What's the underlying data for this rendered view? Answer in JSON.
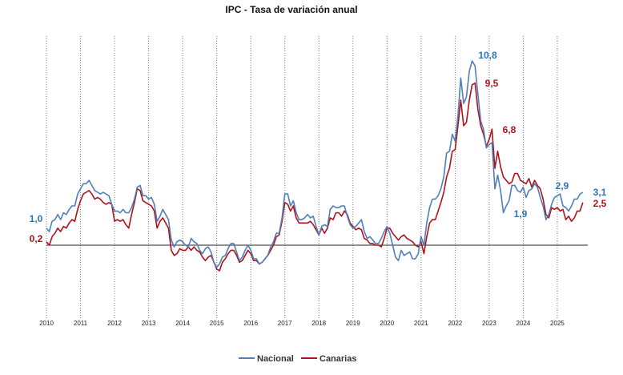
{
  "chart_data": {
    "type": "line",
    "title": "IPC - Tasa de variación anual",
    "xlabel": "",
    "ylabel": "",
    "start": "2010-01",
    "frequency": "monthly",
    "x_ticks": [
      "2010",
      "2011",
      "2012",
      "2013",
      "2014",
      "2015",
      "2016",
      "2017",
      "2018",
      "2019",
      "2020",
      "2021",
      "2022",
      "2023",
      "2024",
      "2025"
    ],
    "ylim": [
      -4.2,
      12.5
    ],
    "grid": "vertical-dotted-yearly",
    "legend": "bottom-center",
    "series": [
      {
        "name": "Nacional",
        "color": "#4f7fb9",
        "values": [
          1.0,
          0.8,
          1.4,
          1.5,
          1.8,
          1.5,
          1.9,
          1.8,
          2.1,
          2.3,
          2.3,
          3.0,
          3.3,
          3.6,
          3.6,
          3.8,
          3.5,
          3.2,
          3.1,
          3.0,
          3.1,
          3.0,
          2.9,
          2.4,
          2.0,
          2.0,
          1.9,
          2.1,
          1.9,
          1.9,
          2.2,
          2.7,
          3.4,
          3.5,
          2.9,
          2.9,
          2.7,
          2.8,
          2.4,
          1.4,
          1.7,
          2.1,
          1.8,
          1.5,
          0.3,
          -0.1,
          0.2,
          0.3,
          0.2,
          0.0,
          -0.1,
          0.4,
          0.2,
          0.1,
          -0.3,
          -0.5,
          -0.2,
          -0.1,
          -0.4,
          -1.0,
          -1.3,
          -1.1,
          -0.7,
          -0.6,
          -0.2,
          0.1,
          0.1,
          -0.4,
          -0.9,
          -0.7,
          -0.3,
          0.0,
          -0.3,
          -0.8,
          -0.8,
          -1.1,
          -1.0,
          -0.8,
          -0.6,
          -0.1,
          0.2,
          0.7,
          0.7,
          1.6,
          3.0,
          3.0,
          2.3,
          2.6,
          1.9,
          1.5,
          1.5,
          1.6,
          1.8,
          1.6,
          1.7,
          1.1,
          0.6,
          1.1,
          1.2,
          1.1,
          2.1,
          2.3,
          2.2,
          2.2,
          2.3,
          2.3,
          1.7,
          1.2,
          1.0,
          1.1,
          1.3,
          1.5,
          0.8,
          0.4,
          0.5,
          0.3,
          0.1,
          0.1,
          0.4,
          0.8,
          1.1,
          0.7,
          0.0,
          -0.7,
          -0.9,
          -0.3,
          -0.6,
          -0.5,
          -0.4,
          -0.8,
          -0.8,
          -0.5,
          0.5,
          0.0,
          1.3,
          2.2,
          2.7,
          2.7,
          2.9,
          3.3,
          4.0,
          5.4,
          5.5,
          6.5,
          6.1,
          7.6,
          9.8,
          8.3,
          8.7,
          10.2,
          10.8,
          10.5,
          8.9,
          7.3,
          6.8,
          5.7,
          5.9,
          6.0,
          3.3,
          4.1,
          3.2,
          1.9,
          2.3,
          2.6,
          3.5,
          3.5,
          3.2,
          3.1,
          3.4,
          2.8,
          3.2,
          3.3,
          3.6,
          3.4,
          2.8,
          2.3,
          1.5,
          1.8,
          2.4,
          2.8,
          2.9,
          3.0,
          2.3,
          2.2,
          2.0,
          2.3,
          2.7,
          2.7,
          3.0,
          3.1
        ]
      },
      {
        "name": "Canarias",
        "color": "#b0121b",
        "values": [
          0.2,
          0.0,
          0.5,
          0.7,
          1.0,
          0.8,
          1.1,
          1.0,
          1.3,
          1.5,
          1.4,
          2.1,
          2.6,
          3.0,
          3.1,
          3.2,
          3.0,
          2.7,
          2.8,
          2.7,
          2.5,
          2.4,
          2.5,
          2.4,
          1.4,
          1.5,
          1.4,
          1.5,
          1.2,
          1.0,
          1.8,
          2.5,
          3.3,
          3.2,
          2.6,
          2.5,
          2.4,
          2.3,
          2.0,
          1.0,
          1.4,
          1.6,
          1.3,
          1.0,
          -0.3,
          -0.6,
          -0.5,
          -0.2,
          -0.3,
          -0.3,
          -0.1,
          -0.3,
          -0.1,
          -0.3,
          -0.4,
          -0.7,
          -0.9,
          -0.7,
          -0.6,
          -1.0,
          -1.4,
          -1.5,
          -1.0,
          -0.8,
          -0.5,
          -0.3,
          -0.3,
          -0.6,
          -1.0,
          -0.9,
          -0.6,
          -0.3,
          -0.5,
          -0.9,
          -0.9,
          -1.1,
          -1.0,
          -0.8,
          -0.6,
          -0.3,
          0.0,
          0.5,
          0.6,
          1.4,
          2.5,
          2.4,
          2.0,
          2.3,
          1.6,
          1.3,
          1.3,
          1.3,
          1.3,
          1.4,
          1.2,
          0.9,
          0.6,
          1.0,
          0.7,
          1.0,
          1.6,
          1.5,
          1.9,
          1.9,
          1.7,
          2.0,
          1.8,
          1.3,
          1.1,
          0.9,
          1.0,
          0.9,
          0.4,
          0.3,
          0.1,
          0.1,
          0.0,
          0.0,
          -0.1,
          0.4,
          1.0,
          1.0,
          0.7,
          0.5,
          0.3,
          0.5,
          0.6,
          0.4,
          0.3,
          0.2,
          0.0,
          -0.1,
          0.2,
          -0.5,
          0.5,
          1.3,
          1.5,
          1.5,
          2.0,
          2.5,
          3.1,
          4.0,
          4.5,
          5.5,
          5.6,
          7.0,
          8.5,
          7.0,
          7.2,
          8.5,
          9.4,
          9.5,
          8.0,
          7.0,
          6.5,
          5.8,
          6.2,
          6.8,
          4.5,
          5.5,
          4.6,
          4.0,
          3.8,
          3.6,
          3.7,
          4.2,
          4.2,
          3.8,
          3.7,
          3.6,
          3.9,
          3.4,
          3.8,
          3.5,
          3.3,
          2.7,
          1.8,
          1.6,
          2.2,
          2.1,
          2.2,
          2.0,
          2.1,
          1.5,
          1.7,
          1.4,
          1.6,
          2.0,
          2.0,
          2.5
        ]
      }
    ],
    "annotations": [
      {
        "text": "1,0",
        "series": "Nacional",
        "value": 1.0
      },
      {
        "text": "0,2",
        "series": "Canarias",
        "value": 0.2
      },
      {
        "text": "10,8",
        "series": "Nacional",
        "value": 10.8
      },
      {
        "text": "9,5",
        "series": "Canarias",
        "value": 9.5
      },
      {
        "text": "6,8",
        "series": "Canarias",
        "value": 6.8
      },
      {
        "text": "1,9",
        "series": "Nacional",
        "value": 1.9
      },
      {
        "text": "2,9",
        "series": "Nacional",
        "value": 2.9
      },
      {
        "text": "3,1",
        "series": "Nacional",
        "value": 3.1
      },
      {
        "text": "2,5",
        "series": "Canarias",
        "value": 2.5
      }
    ]
  }
}
